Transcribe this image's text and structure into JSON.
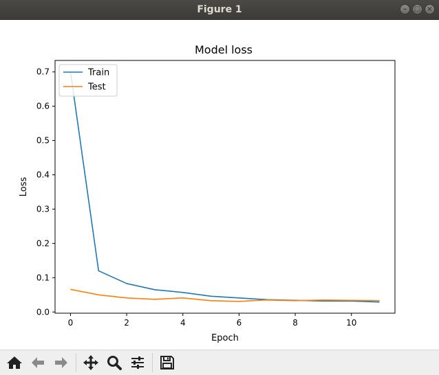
{
  "window": {
    "title": "Figure 1"
  },
  "toolbar": {
    "tools": [
      {
        "icon": "home-icon"
      },
      {
        "icon": "back-arrow-icon"
      },
      {
        "icon": "forward-arrow-icon"
      },
      {
        "icon": "pan-move-icon"
      },
      {
        "icon": "zoom-magnifier-icon"
      },
      {
        "icon": "configure-subplots-icon"
      },
      {
        "icon": "save-floppy-icon"
      }
    ]
  },
  "chart_data": {
    "type": "line",
    "title": "Model loss",
    "xlabel": "Epoch",
    "ylabel": "Loss",
    "xlim": [
      -0.55,
      11.55
    ],
    "ylim": [
      -0.0035,
      0.7335
    ],
    "xticks": [
      0,
      2,
      4,
      6,
      8,
      10
    ],
    "xtick_labels": [
      "0",
      "2",
      "4",
      "6",
      "8",
      "10"
    ],
    "yticks": [
      0.0,
      0.1,
      0.2,
      0.3,
      0.4,
      0.5,
      0.6,
      0.7
    ],
    "ytick_labels": [
      "0.0",
      "0.1",
      "0.2",
      "0.3",
      "0.4",
      "0.5",
      "0.6",
      "0.7"
    ],
    "grid": false,
    "legend_position": "upper-left",
    "x": [
      0,
      1,
      2,
      3,
      4,
      5,
      6,
      7,
      8,
      9,
      10,
      11
    ],
    "series": [
      {
        "name": "Train",
        "color": "#1f77b4",
        "values": [
          0.7,
          0.12,
          0.083,
          0.065,
          0.057,
          0.046,
          0.041,
          0.036,
          0.034,
          0.032,
          0.032,
          0.029
        ]
      },
      {
        "name": "Test",
        "color": "#ff7f0e",
        "values": [
          0.066,
          0.05,
          0.041,
          0.037,
          0.041,
          0.033,
          0.031,
          0.035,
          0.033,
          0.035,
          0.034,
          0.033
        ]
      }
    ]
  }
}
